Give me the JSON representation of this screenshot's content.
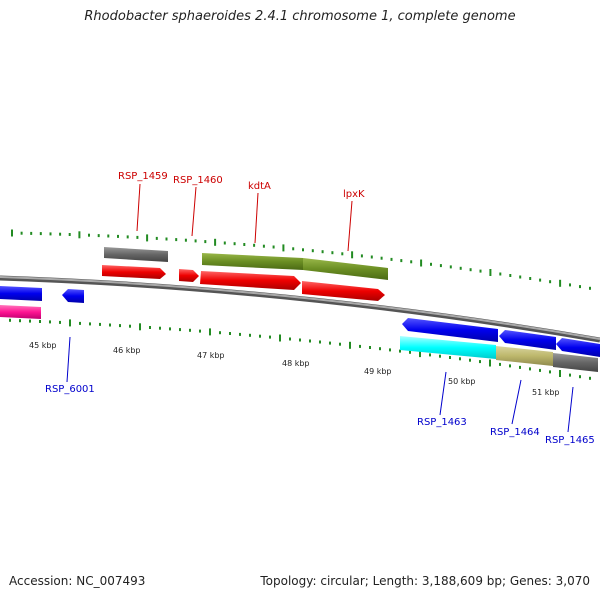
{
  "title": "Rhodobacter sphaeroides 2.4.1 chromosome 1, complete genome",
  "footer": {
    "accession": "Accession: NC_007493",
    "summary": "Topology: circular; Length: 3,188,609 bp; Genes: 3,070"
  },
  "scale_labels": [
    "45 kbp",
    "46 kbp",
    "47 kbp",
    "48 kbp",
    "49 kbp",
    "50 kbp",
    "51 kbp"
  ],
  "top_labels": [
    "RSP_1459",
    "RSP_1460",
    "kdtA",
    "lpxK"
  ],
  "bottom_labels": [
    "RSP_6001",
    "RSP_1463",
    "RSP_1464",
    "RSP_1465"
  ],
  "colors": {
    "forward_strand_gene": "#ff0000",
    "reverse_strand_gene": "#0000ff",
    "cog_gray": "#555555",
    "cog_olive": "#6b8e23",
    "cog_cyan": "#00ffff",
    "cog_khaki": "#bdb76b",
    "cog_pink": "#ff1493",
    "tick": "#228b22",
    "backbone": "#888888"
  }
}
